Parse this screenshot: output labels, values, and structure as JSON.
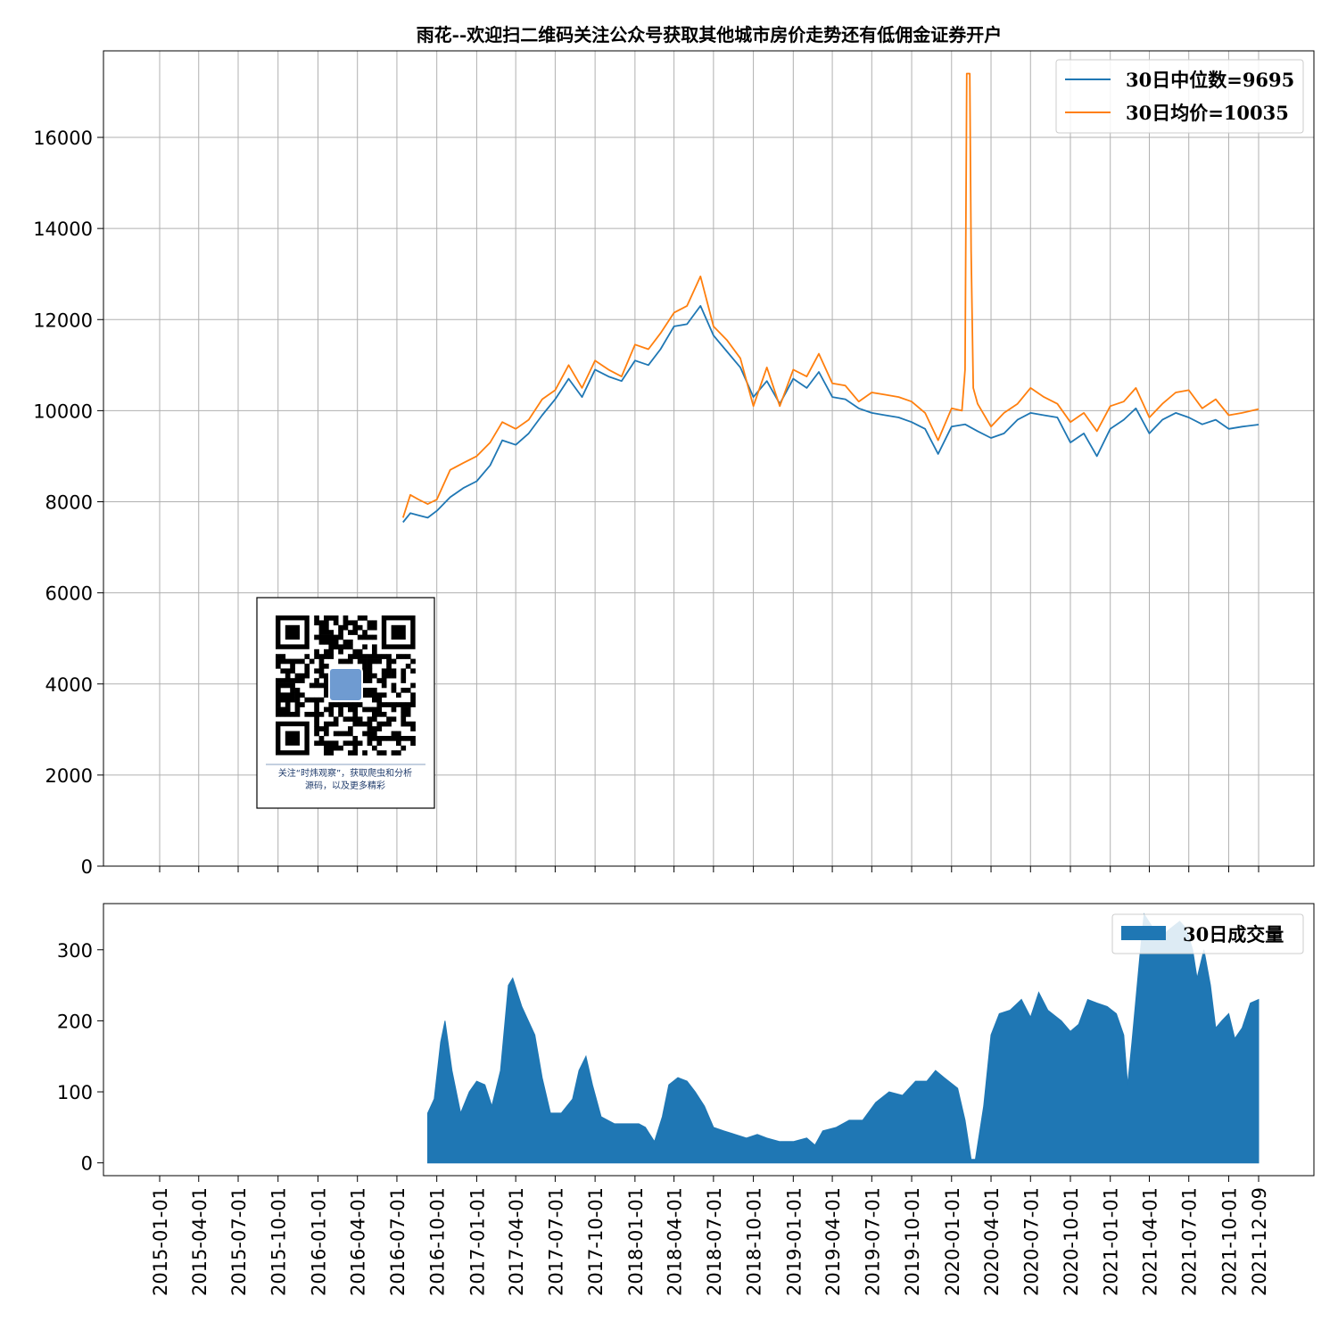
{
  "chart_data": [
    {
      "type": "line",
      "title": "雨花--欢迎扫二维码关注公众号获取其他城市房价走势还有低佣金证券开户",
      "ylim": [
        0,
        17900
      ],
      "yticks": [
        0,
        2000,
        4000,
        6000,
        8000,
        10000,
        12000,
        14000,
        16000
      ],
      "grid": true,
      "legend_position": "top-right",
      "colors": {
        "median": "#1f77b4",
        "mean": "#ff7f0e"
      },
      "series": [
        {
          "name": "30日中位数=9695",
          "points": [
            [
              "2016-07-15",
              7550
            ],
            [
              "2016-08-01",
              7750
            ],
            [
              "2016-08-20",
              7700
            ],
            [
              "2016-09-10",
              7650
            ],
            [
              "2016-10-01",
              7800
            ],
            [
              "2016-11-01",
              8100
            ],
            [
              "2016-12-01",
              8300
            ],
            [
              "2017-01-01",
              8450
            ],
            [
              "2017-02-01",
              8800
            ],
            [
              "2017-03-01",
              9350
            ],
            [
              "2017-04-01",
              9250
            ],
            [
              "2017-05-01",
              9500
            ],
            [
              "2017-06-01",
              9900
            ],
            [
              "2017-07-01",
              10250
            ],
            [
              "2017-08-01",
              10700
            ],
            [
              "2017-09-01",
              10300
            ],
            [
              "2017-10-01",
              10900
            ],
            [
              "2017-11-01",
              10750
            ],
            [
              "2017-12-01",
              10650
            ],
            [
              "2018-01-01",
              11100
            ],
            [
              "2018-02-01",
              11000
            ],
            [
              "2018-03-01",
              11350
            ],
            [
              "2018-04-01",
              11850
            ],
            [
              "2018-05-01",
              11900
            ],
            [
              "2018-06-01",
              12300
            ],
            [
              "2018-07-01",
              11650
            ],
            [
              "2018-08-01",
              11300
            ],
            [
              "2018-09-01",
              10950
            ],
            [
              "2018-10-01",
              10300
            ],
            [
              "2018-11-01",
              10650
            ],
            [
              "2018-12-01",
              10150
            ],
            [
              "2019-01-01",
              10700
            ],
            [
              "2019-02-01",
              10500
            ],
            [
              "2019-03-01",
              10850
            ],
            [
              "2019-04-01",
              10300
            ],
            [
              "2019-05-01",
              10250
            ],
            [
              "2019-06-01",
              10050
            ],
            [
              "2019-07-01",
              9950
            ],
            [
              "2019-08-01",
              9900
            ],
            [
              "2019-09-01",
              9850
            ],
            [
              "2019-10-01",
              9750
            ],
            [
              "2019-11-01",
              9600
            ],
            [
              "2019-12-01",
              9050
            ],
            [
              "2020-01-01",
              9650
            ],
            [
              "2020-02-01",
              9700
            ],
            [
              "2020-03-01",
              9550
            ],
            [
              "2020-04-01",
              9400
            ],
            [
              "2020-05-01",
              9500
            ],
            [
              "2020-06-01",
              9800
            ],
            [
              "2020-07-01",
              9950
            ],
            [
              "2020-08-01",
              9900
            ],
            [
              "2020-09-01",
              9850
            ],
            [
              "2020-10-01",
              9300
            ],
            [
              "2020-11-01",
              9500
            ],
            [
              "2020-12-01",
              9000
            ],
            [
              "2021-01-01",
              9600
            ],
            [
              "2021-02-01",
              9800
            ],
            [
              "2021-03-01",
              10050
            ],
            [
              "2021-04-01",
              9500
            ],
            [
              "2021-05-01",
              9800
            ],
            [
              "2021-06-01",
              9950
            ],
            [
              "2021-07-01",
              9850
            ],
            [
              "2021-08-01",
              9700
            ],
            [
              "2021-09-01",
              9800
            ],
            [
              "2021-10-01",
              9600
            ],
            [
              "2021-11-01",
              9650
            ],
            [
              "2021-12-09",
              9695
            ]
          ]
        },
        {
          "name": "30日均价=10035",
          "points": [
            [
              "2016-07-15",
              7650
            ],
            [
              "2016-08-01",
              8150
            ],
            [
              "2016-08-20",
              8050
            ],
            [
              "2016-09-10",
              7950
            ],
            [
              "2016-10-01",
              8050
            ],
            [
              "2016-11-01",
              8700
            ],
            [
              "2016-12-01",
              8850
            ],
            [
              "2017-01-01",
              9000
            ],
            [
              "2017-02-01",
              9300
            ],
            [
              "2017-03-01",
              9750
            ],
            [
              "2017-04-01",
              9600
            ],
            [
              "2017-05-01",
              9800
            ],
            [
              "2017-06-01",
              10250
            ],
            [
              "2017-07-01",
              10450
            ],
            [
              "2017-08-01",
              11000
            ],
            [
              "2017-09-01",
              10500
            ],
            [
              "2017-10-01",
              11100
            ],
            [
              "2017-11-01",
              10900
            ],
            [
              "2017-12-01",
              10750
            ],
            [
              "2018-01-01",
              11450
            ],
            [
              "2018-02-01",
              11350
            ],
            [
              "2018-03-01",
              11700
            ],
            [
              "2018-04-01",
              12150
            ],
            [
              "2018-05-01",
              12300
            ],
            [
              "2018-06-01",
              12950
            ],
            [
              "2018-07-01",
              11850
            ],
            [
              "2018-08-01",
              11550
            ],
            [
              "2018-09-01",
              11150
            ],
            [
              "2018-10-01",
              10100
            ],
            [
              "2018-11-01",
              10950
            ],
            [
              "2018-12-01",
              10100
            ],
            [
              "2019-01-01",
              10900
            ],
            [
              "2019-02-01",
              10750
            ],
            [
              "2019-03-01",
              11250
            ],
            [
              "2019-04-01",
              10600
            ],
            [
              "2019-05-01",
              10550
            ],
            [
              "2019-06-01",
              10200
            ],
            [
              "2019-07-01",
              10400
            ],
            [
              "2019-08-01",
              10350
            ],
            [
              "2019-09-01",
              10300
            ],
            [
              "2019-10-01",
              10200
            ],
            [
              "2019-11-01",
              9950
            ],
            [
              "2019-12-01",
              9350
            ],
            [
              "2020-01-01",
              10050
            ],
            [
              "2020-01-25",
              10000
            ],
            [
              "2020-02-01",
              10900
            ],
            [
              "2020-02-05",
              17400
            ],
            [
              "2020-02-12",
              17400
            ],
            [
              "2020-02-15",
              13500
            ],
            [
              "2020-02-20",
              10500
            ],
            [
              "2020-03-01",
              10150
            ],
            [
              "2020-04-01",
              9650
            ],
            [
              "2020-05-01",
              9950
            ],
            [
              "2020-06-01",
              10150
            ],
            [
              "2020-07-01",
              10500
            ],
            [
              "2020-08-01",
              10300
            ],
            [
              "2020-09-01",
              10150
            ],
            [
              "2020-10-01",
              9750
            ],
            [
              "2020-11-01",
              9950
            ],
            [
              "2020-12-01",
              9550
            ],
            [
              "2021-01-01",
              10100
            ],
            [
              "2021-02-01",
              10200
            ],
            [
              "2021-03-01",
              10500
            ],
            [
              "2021-04-01",
              9850
            ],
            [
              "2021-05-01",
              10150
            ],
            [
              "2021-06-01",
              10400
            ],
            [
              "2021-07-01",
              10450
            ],
            [
              "2021-08-01",
              10050
            ],
            [
              "2021-09-01",
              10250
            ],
            [
              "2021-10-01",
              9900
            ],
            [
              "2021-11-01",
              9950
            ],
            [
              "2021-12-09",
              10035
            ]
          ]
        }
      ]
    },
    {
      "type": "area",
      "ylim": [
        -18,
        365
      ],
      "yticks": [
        0,
        100,
        200,
        300
      ],
      "xticks": [
        "2015-01-01",
        "2015-04-01",
        "2015-07-01",
        "2015-10-01",
        "2016-01-01",
        "2016-04-01",
        "2016-07-01",
        "2016-10-01",
        "2017-01-01",
        "2017-04-01",
        "2017-07-01",
        "2017-10-01",
        "2018-01-01",
        "2018-04-01",
        "2018-07-01",
        "2018-10-01",
        "2019-01-01",
        "2019-04-01",
        "2019-07-01",
        "2019-10-01",
        "2020-01-01",
        "2020-04-01",
        "2020-07-01",
        "2020-10-01",
        "2021-01-01",
        "2021-04-01",
        "2021-07-01",
        "2021-10-01",
        "2021-12-09"
      ],
      "grid": false,
      "legend_position": "top-right",
      "color": "#1f77b4",
      "series": [
        {
          "name": "30日成交量",
          "points": [
            [
              "2016-09-10",
              70
            ],
            [
              "2016-09-25",
              90
            ],
            [
              "2016-10-10",
              170
            ],
            [
              "2016-10-20",
              200
            ],
            [
              "2016-11-05",
              130
            ],
            [
              "2016-11-25",
              70
            ],
            [
              "2016-12-15",
              100
            ],
            [
              "2017-01-01",
              115
            ],
            [
              "2017-01-20",
              110
            ],
            [
              "2017-02-05",
              80
            ],
            [
              "2017-02-25",
              130
            ],
            [
              "2017-03-15",
              250
            ],
            [
              "2017-03-25",
              260
            ],
            [
              "2017-04-15",
              220
            ],
            [
              "2017-05-15",
              180
            ],
            [
              "2017-06-01",
              120
            ],
            [
              "2017-06-20",
              70
            ],
            [
              "2017-07-15",
              70
            ],
            [
              "2017-08-10",
              90
            ],
            [
              "2017-08-25",
              130
            ],
            [
              "2017-09-10",
              150
            ],
            [
              "2017-09-25",
              110
            ],
            [
              "2017-10-15",
              65
            ],
            [
              "2017-11-15",
              55
            ],
            [
              "2017-12-10",
              55
            ],
            [
              "2018-01-10",
              55
            ],
            [
              "2018-01-25",
              50
            ],
            [
              "2018-02-15",
              30
            ],
            [
              "2018-03-05",
              65
            ],
            [
              "2018-03-20",
              110
            ],
            [
              "2018-04-10",
              120
            ],
            [
              "2018-05-01",
              115
            ],
            [
              "2018-05-20",
              100
            ],
            [
              "2018-06-10",
              80
            ],
            [
              "2018-07-01",
              50
            ],
            [
              "2018-07-25",
              45
            ],
            [
              "2018-08-20",
              40
            ],
            [
              "2018-09-15",
              35
            ],
            [
              "2018-10-10",
              40
            ],
            [
              "2018-11-01",
              35
            ],
            [
              "2018-12-01",
              30
            ],
            [
              "2019-01-01",
              30
            ],
            [
              "2019-02-01",
              35
            ],
            [
              "2019-02-20",
              25
            ],
            [
              "2019-03-10",
              45
            ],
            [
              "2019-04-10",
              50
            ],
            [
              "2019-05-10",
              60
            ],
            [
              "2019-06-10",
              60
            ],
            [
              "2019-07-10",
              85
            ],
            [
              "2019-08-10",
              100
            ],
            [
              "2019-09-10",
              95
            ],
            [
              "2019-10-10",
              115
            ],
            [
              "2019-11-05",
              115
            ],
            [
              "2019-11-25",
              130
            ],
            [
              "2019-12-15",
              120
            ],
            [
              "2020-01-15",
              105
            ],
            [
              "2020-02-01",
              60
            ],
            [
              "2020-02-15",
              5
            ],
            [
              "2020-02-25",
              5
            ],
            [
              "2020-03-15",
              80
            ],
            [
              "2020-04-01",
              180
            ],
            [
              "2020-04-20",
              210
            ],
            [
              "2020-05-15",
              215
            ],
            [
              "2020-06-10",
              230
            ],
            [
              "2020-07-01",
              205
            ],
            [
              "2020-07-20",
              240
            ],
            [
              "2020-08-10",
              215
            ],
            [
              "2020-09-10",
              200
            ],
            [
              "2020-10-01",
              185
            ],
            [
              "2020-10-20",
              195
            ],
            [
              "2020-11-10",
              230
            ],
            [
              "2020-12-01",
              225
            ],
            [
              "2020-12-25",
              220
            ],
            [
              "2021-01-15",
              210
            ],
            [
              "2021-02-01",
              180
            ],
            [
              "2021-02-10",
              110
            ],
            [
              "2021-02-20",
              170
            ],
            [
              "2021-03-10",
              290
            ],
            [
              "2021-03-20",
              350
            ],
            [
              "2021-04-10",
              330
            ],
            [
              "2021-05-01",
              320
            ],
            [
              "2021-05-20",
              330
            ],
            [
              "2021-06-10",
              340
            ],
            [
              "2021-06-25",
              330
            ],
            [
              "2021-07-10",
              300
            ],
            [
              "2021-07-20",
              260
            ],
            [
              "2021-08-05",
              300
            ],
            [
              "2021-08-20",
              250
            ],
            [
              "2021-09-01",
              190
            ],
            [
              "2021-09-15",
              200
            ],
            [
              "2021-10-01",
              210
            ],
            [
              "2021-10-15",
              175
            ],
            [
              "2021-11-01",
              190
            ],
            [
              "2021-11-20",
              225
            ],
            [
              "2021-12-09",
              230
            ]
          ]
        }
      ]
    }
  ],
  "qr": {
    "caption_line1": "关注“时炜观察”，获取爬虫和分析",
    "caption_line2": "源码，以及更多精彩"
  }
}
